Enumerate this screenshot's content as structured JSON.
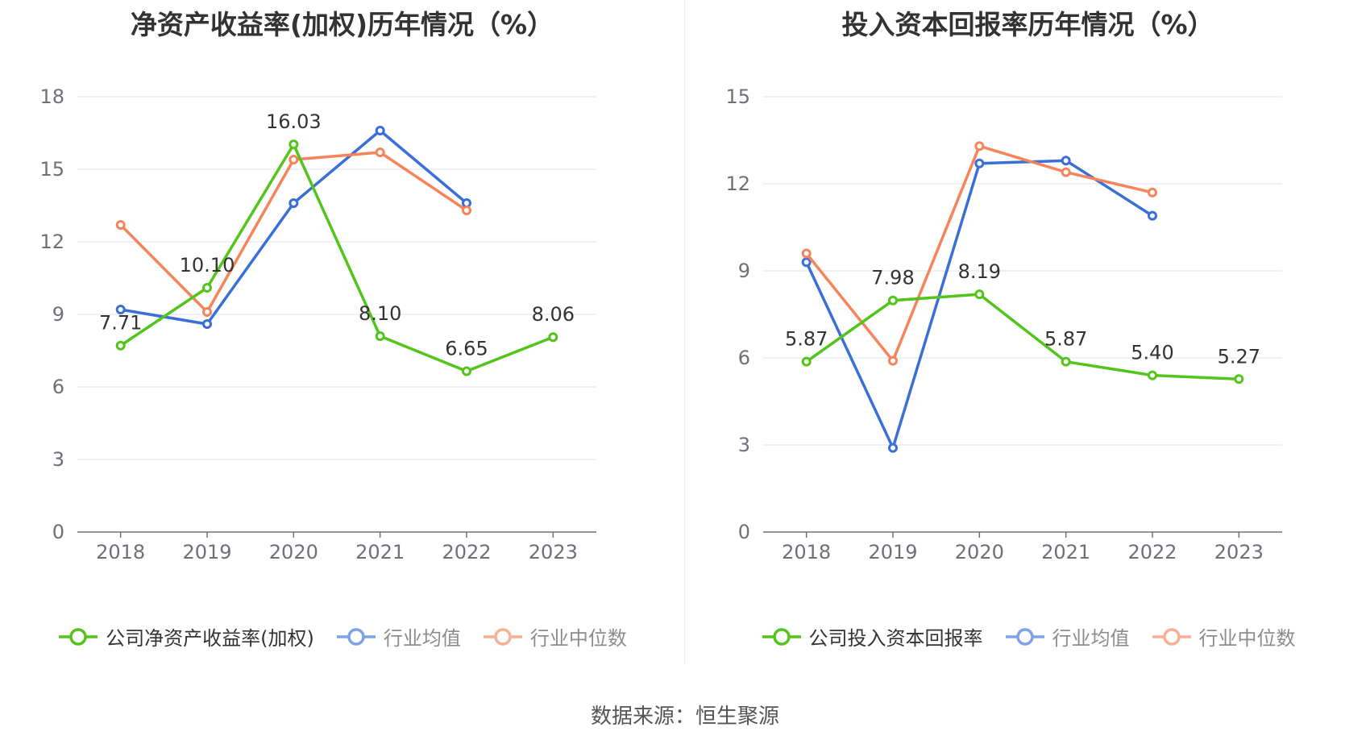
{
  "source_text": "数据来源：恒生聚源",
  "chart_data": [
    {
      "type": "line",
      "title": "净资产收益率(加权)历年情况（%）",
      "categories": [
        "2018",
        "2019",
        "2020",
        "2021",
        "2022",
        "2023"
      ],
      "ylim": [
        0,
        18
      ],
      "yticks": [
        "0",
        "3",
        "6",
        "9",
        "12",
        "15",
        "18"
      ],
      "grid": true,
      "legend_position": "bottom",
      "series": [
        {
          "name": "公司净资产收益率(加权)",
          "color": "#52c41a",
          "values": [
            7.71,
            10.1,
            16.03,
            8.1,
            6.65,
            8.06
          ],
          "labels": [
            "7.71",
            "10.10",
            "16.03",
            "8.10",
            "6.65",
            "8.06"
          ],
          "active": true
        },
        {
          "name": "行业均值",
          "color": "#3a6fd8",
          "values": [
            9.2,
            8.6,
            13.6,
            16.6,
            13.6,
            null
          ],
          "active": false
        },
        {
          "name": "行业中位数",
          "color": "#f5845a",
          "values": [
            12.7,
            9.1,
            15.4,
            15.7,
            13.3,
            null
          ],
          "active": false
        }
      ]
    },
    {
      "type": "line",
      "title": "投入资本回报率历年情况（%）",
      "categories": [
        "2018",
        "2019",
        "2020",
        "2021",
        "2022",
        "2023"
      ],
      "ylim": [
        0,
        15
      ],
      "yticks": [
        "0",
        "3",
        "6",
        "9",
        "12",
        "15"
      ],
      "grid": true,
      "legend_position": "bottom",
      "series": [
        {
          "name": "公司投入资本回报率",
          "color": "#52c41a",
          "values": [
            5.87,
            7.98,
            8.19,
            5.87,
            5.4,
            5.27
          ],
          "labels": [
            "5.87",
            "7.98",
            "8.19",
            "5.87",
            "5.40",
            "5.27"
          ],
          "active": true
        },
        {
          "name": "行业均值",
          "color": "#3a6fd8",
          "values": [
            9.3,
            2.9,
            12.7,
            12.8,
            10.9,
            null
          ],
          "active": false
        },
        {
          "name": "行业中位数",
          "color": "#f5845a",
          "values": [
            9.6,
            5.9,
            13.3,
            12.4,
            11.7,
            null
          ],
          "active": false
        }
      ]
    }
  ]
}
